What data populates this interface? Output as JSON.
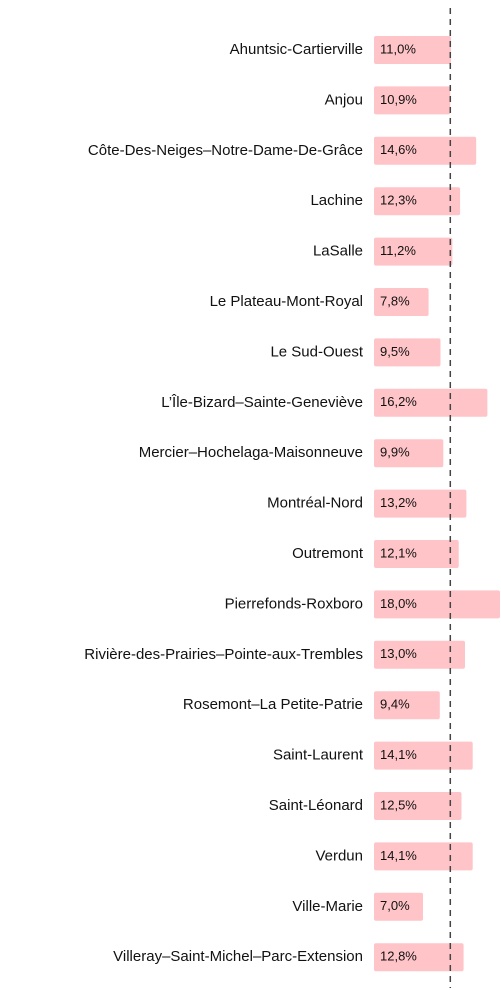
{
  "chart_data": {
    "type": "barh",
    "categories": [
      "Ahuntsic-Cartierville",
      "Anjou",
      "Côte-Des-Neiges–Notre-Dame-De-Grâce",
      "Lachine",
      "LaSalle",
      "Le Plateau-Mont-Royal",
      "Le Sud-Ouest",
      "L’Île-Bizard–Sainte-Geneviève",
      "Mercier–Hochelaga-Maisonneuve",
      "Montréal-Nord",
      "Outremont",
      "Pierrefonds-Roxboro",
      "Rivière-des-Prairies–Pointe-aux-Trembles",
      "Rosemont–La Petite-Patrie",
      "Saint-Laurent",
      "Saint-Léonard",
      "Verdun",
      "Ville-Marie",
      "Villeray–Saint-Michel–Parc-Extension"
    ],
    "values": [
      11.0,
      10.9,
      14.6,
      12.3,
      11.2,
      7.8,
      9.5,
      16.2,
      9.9,
      13.2,
      12.1,
      18.0,
      13.0,
      9.4,
      14.1,
      12.5,
      14.1,
      7.0,
      12.8
    ],
    "value_labels": [
      "11,0%",
      "10,9%",
      "14,6%",
      "12,3%",
      "11,2%",
      "7,8%",
      "9,5%",
      "16,2%",
      "9,9%",
      "13,2%",
      "12,1%",
      "18,0%",
      "13,0%",
      "9,4%",
      "14,1%",
      "12,5%",
      "14,1%",
      "7,0%",
      "12,8%"
    ],
    "color": "#ffc4c8",
    "xlim": [
      0,
      18
    ],
    "reference_line": 10.9
  }
}
